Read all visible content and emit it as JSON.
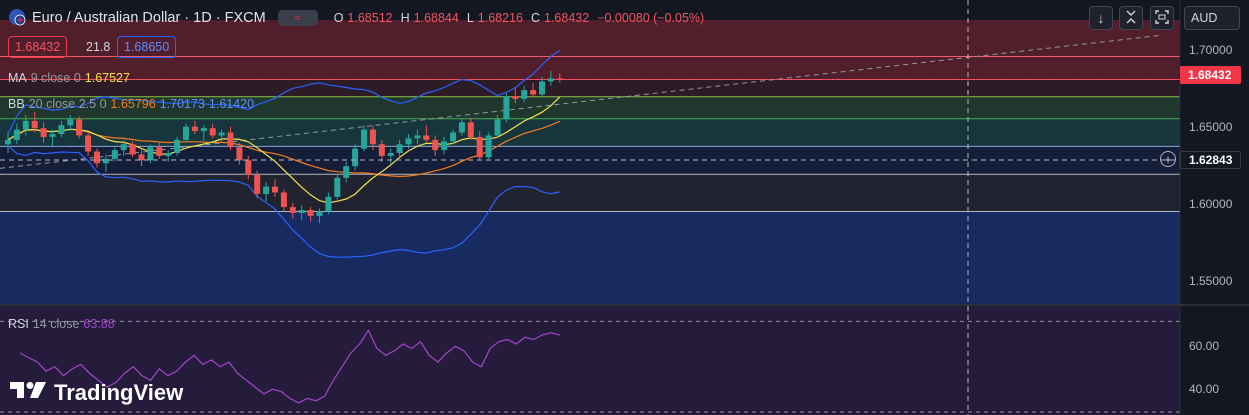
{
  "header": {
    "symbol_title": "Euro / Australian Dollar · 1D · FXCM",
    "pill_text": "≈",
    "ohlc": [
      {
        "key": "O",
        "value": "1.68512"
      },
      {
        "key": "H",
        "value": "1.68844"
      },
      {
        "key": "L",
        "value": "1.68216"
      },
      {
        "key": "C",
        "value": "1.68432"
      }
    ],
    "change": "−0.00080 (−0.05%)"
  },
  "trade": {
    "bid": "1.68432",
    "spread": "21.8",
    "ask": "1.68650"
  },
  "indicators": {
    "ma": {
      "name": "MA",
      "params": "9 close 0",
      "value": "1.67527"
    },
    "bb": {
      "name": "BB",
      "params": "20 close 2.5 0",
      "basis": "1.65796",
      "upper": "1.70173",
      "lower": "1.61420"
    },
    "rsi": {
      "name": "RSI",
      "params": "14 close",
      "value": "63.88"
    }
  },
  "toolbar": {
    "currency": "AUD",
    "down_icon": "↓",
    "expand_icon": "⛶"
  },
  "price_axis": {
    "labels": [
      "1.70000",
      "1.65000",
      "1.60000",
      "1.55000"
    ],
    "last_price": "1.68432",
    "crosshair_price": "1.62843"
  },
  "rsi_axis": {
    "labels": [
      "60.00",
      "40.00"
    ]
  },
  "brand": {
    "name": "TradingView"
  },
  "colors": {
    "up": "#26a69a",
    "down": "#ef5350",
    "ma": "#f7e14a",
    "bb_basis": "#f57c1f",
    "bb_bands": "#2962ff",
    "rsi": "#a347c9",
    "accent": "#2962ff"
  },
  "chart_data": {
    "type": "candlestick",
    "timeframe": "1D",
    "ylim": [
      1.53,
      1.725
    ],
    "overlay_levels": [
      1.7,
      1.68432,
      1.6725,
      1.6574,
      1.6385,
      1.6195,
      1.594
    ],
    "candles": [
      [
        1.64,
        1.648,
        1.634,
        1.643
      ],
      [
        1.643,
        1.654,
        1.64,
        1.65
      ],
      [
        1.65,
        1.66,
        1.646,
        1.656
      ],
      [
        1.656,
        1.662,
        1.648,
        1.651
      ],
      [
        1.651,
        1.655,
        1.641,
        1.645
      ],
      [
        1.645,
        1.65,
        1.638,
        1.647
      ],
      [
        1.647,
        1.656,
        1.645,
        1.653
      ],
      [
        1.653,
        1.66,
        1.649,
        1.657
      ],
      [
        1.657,
        1.659,
        1.644,
        1.646
      ],
      [
        1.646,
        1.648,
        1.632,
        1.635
      ],
      [
        1.635,
        1.637,
        1.624,
        1.627
      ],
      [
        1.627,
        1.633,
        1.621,
        1.63
      ],
      [
        1.63,
        1.638,
        1.628,
        1.636
      ],
      [
        1.636,
        1.643,
        1.632,
        1.64
      ],
      [
        1.64,
        1.642,
        1.631,
        1.633
      ],
      [
        1.633,
        1.636,
        1.625,
        1.629
      ],
      [
        1.629,
        1.64,
        1.627,
        1.638
      ],
      [
        1.638,
        1.642,
        1.63,
        1.632
      ],
      [
        1.632,
        1.636,
        1.628,
        1.634
      ],
      [
        1.634,
        1.645,
        1.632,
        1.643
      ],
      [
        1.643,
        1.654,
        1.641,
        1.652
      ],
      [
        1.652,
        1.656,
        1.647,
        1.649
      ],
      [
        1.649,
        1.653,
        1.642,
        1.651
      ],
      [
        1.651,
        1.654,
        1.644,
        1.646
      ],
      [
        1.646,
        1.65,
        1.641,
        1.648
      ],
      [
        1.648,
        1.652,
        1.636,
        1.638
      ],
      [
        1.638,
        1.641,
        1.626,
        1.629
      ],
      [
        1.629,
        1.632,
        1.616,
        1.619
      ],
      [
        1.619,
        1.622,
        1.603,
        1.606
      ],
      [
        1.606,
        1.614,
        1.601,
        1.611
      ],
      [
        1.611,
        1.616,
        1.604,
        1.607
      ],
      [
        1.607,
        1.609,
        1.594,
        1.597
      ],
      [
        1.597,
        1.6,
        1.589,
        1.593
      ],
      [
        1.593,
        1.598,
        1.588,
        1.595
      ],
      [
        1.595,
        1.597,
        1.587,
        1.591
      ],
      [
        1.591,
        1.596,
        1.586,
        1.594
      ],
      [
        1.594,
        1.607,
        1.592,
        1.604
      ],
      [
        1.604,
        1.62,
        1.602,
        1.617
      ],
      [
        1.617,
        1.628,
        1.614,
        1.625
      ],
      [
        1.625,
        1.64,
        1.622,
        1.637
      ],
      [
        1.637,
        1.653,
        1.635,
        1.65
      ],
      [
        1.65,
        1.653,
        1.636,
        1.64
      ],
      [
        1.64,
        1.643,
        1.628,
        1.632
      ],
      [
        1.632,
        1.637,
        1.626,
        1.634
      ],
      [
        1.634,
        1.643,
        1.631,
        1.64
      ],
      [
        1.64,
        1.647,
        1.637,
        1.644
      ],
      [
        1.644,
        1.65,
        1.64,
        1.646
      ],
      [
        1.646,
        1.653,
        1.641,
        1.643
      ],
      [
        1.643,
        1.646,
        1.632,
        1.636
      ],
      [
        1.636,
        1.645,
        1.633,
        1.642
      ],
      [
        1.642,
        1.65,
        1.64,
        1.648
      ],
      [
        1.648,
        1.657,
        1.646,
        1.655
      ],
      [
        1.655,
        1.658,
        1.643,
        1.645
      ],
      [
        1.645,
        1.649,
        1.629,
        1.631
      ],
      [
        1.631,
        1.648,
        1.63,
        1.646
      ],
      [
        1.646,
        1.66,
        1.644,
        1.657
      ],
      [
        1.657,
        1.675,
        1.655,
        1.673
      ],
      [
        1.673,
        1.679,
        1.668,
        1.671
      ],
      [
        1.671,
        1.68,
        1.669,
        1.677
      ],
      [
        1.677,
        1.682,
        1.672,
        1.674
      ],
      [
        1.674,
        1.686,
        1.672,
        1.683
      ],
      [
        1.683,
        1.69,
        1.68,
        1.685
      ],
      [
        1.685,
        1.6884,
        1.6822,
        1.6843
      ]
    ],
    "rsi": [
      56,
      54,
      52,
      48,
      50,
      46,
      49,
      51,
      47,
      44,
      41,
      43,
      47,
      50,
      46,
      44,
      49,
      46,
      48,
      52,
      55,
      51,
      53,
      50,
      52,
      47,
      44,
      41,
      38,
      40,
      39,
      36,
      34,
      36,
      35,
      37,
      44,
      50,
      56,
      60,
      66,
      58,
      55,
      57,
      60,
      58,
      61,
      55,
      52,
      56,
      59,
      57,
      52,
      50,
      58,
      61,
      62,
      60,
      63,
      62,
      64,
      65,
      63.88
    ],
    "rsi_ylim": [
      30,
      75
    ],
    "rsi_levels": [
      70,
      30
    ]
  }
}
